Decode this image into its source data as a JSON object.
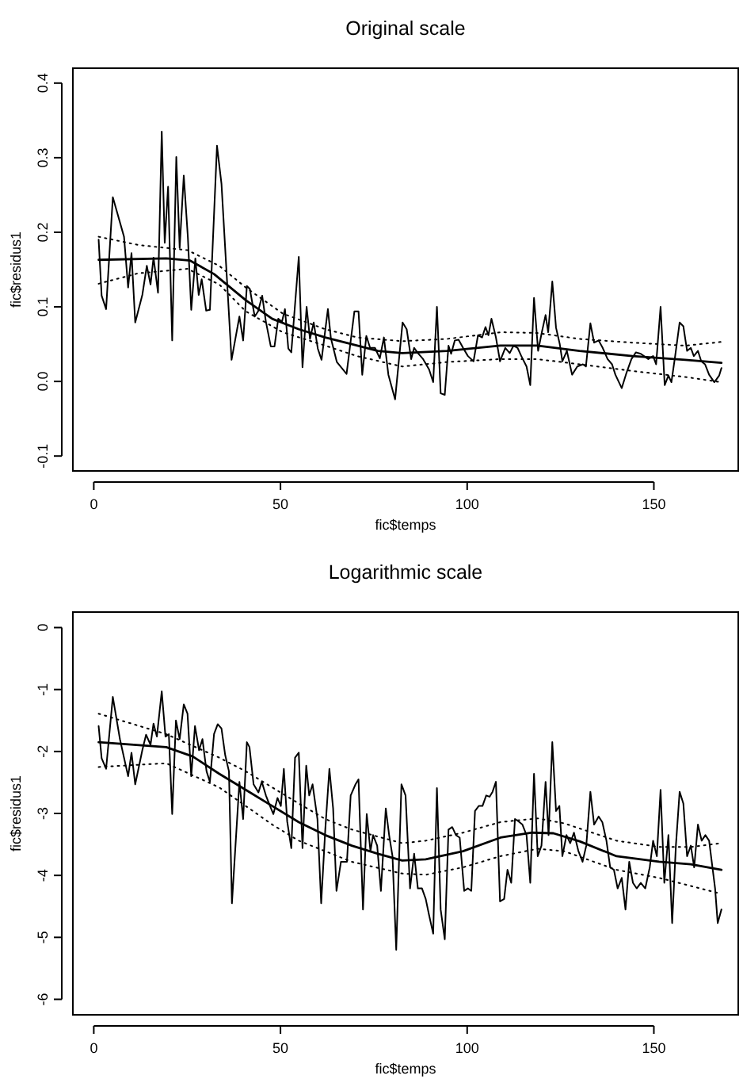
{
  "chart_data": [
    {
      "type": "line",
      "title": "Original scale",
      "xlabel": "fic$temps",
      "ylabel": "fic$residus1",
      "xlim": [
        -5.6,
        172.6
      ],
      "xticks": [
        0,
        50,
        100,
        150
      ],
      "ylim": [
        -0.12,
        0.42
      ],
      "yticks": [
        -0.1,
        {
          "value": 0,
          "label": "0.0"
        },
        0.1,
        0.2,
        0.3,
        0.4
      ],
      "grid": false,
      "marker": "none",
      "series": [
        {
          "color": "#000000",
          "line_style": "solid",
          "x": [
            1.3,
            2.1,
            3.3,
            5.1,
            8.1,
            9.2,
            10.1,
            11.1,
            13.0,
            14.2,
            15.2,
            16.0,
            17.2,
            18.2,
            19.0,
            19.9,
            21.0,
            22.1,
            23.0,
            24.1,
            25.2,
            26.1,
            27.2,
            28.1,
            28.9,
            30.1,
            31.1,
            33.0,
            34.2,
            36.9,
            39.0,
            40.0,
            41.0,
            41.8,
            43.1,
            44.0,
            45.1,
            46.1,
            47.4,
            48.4,
            49.4,
            50.4,
            51.2,
            52.1,
            52.9,
            54.9,
            55.9,
            57.0,
            57.9,
            58.9,
            60.0,
            61.0,
            62.7,
            63.5,
            65.1,
            67.7,
            69.8,
            70.9,
            71.9,
            73.0,
            74.0,
            75.3,
            76.6,
            77.7,
            78.9,
            80.7,
            82.7,
            83.8,
            85.0,
            85.8,
            86.8,
            88.2,
            89.8,
            90.9,
            91.9,
            92.9,
            94.0,
            95.0,
            95.7,
            96.7,
            97.7,
            98.9,
            100.2,
            101.7,
            102.9,
            104.0,
            104.9,
            105.7,
            106.5,
            107.7,
            108.8,
            110.2,
            111.4,
            112.4,
            113.5,
            114.5,
            115.9,
            116.9,
            117.9,
            119.0,
            120.0,
            121.0,
            121.7,
            122.8,
            123.8,
            124.8,
            125.5,
            126.7,
            128.1,
            129.5,
            131.0,
            131.8,
            133.0,
            134.0,
            135.2,
            136.3,
            137.6,
            138.8,
            139.7,
            141.4,
            142.7,
            144.0,
            145.2,
            146.5,
            148.5,
            149.8,
            150.6,
            151.8,
            152.9,
            153.9,
            154.7,
            155.7,
            156.9,
            157.9,
            158.9,
            159.9,
            160.7,
            161.8,
            162.7,
            163.7,
            164.8,
            166.2,
            167.5,
            168.1
          ],
          "values": [
            0.19,
            0.115,
            0.097,
            0.247,
            0.194,
            0.126,
            0.172,
            0.079,
            0.116,
            0.155,
            0.13,
            0.166,
            0.119,
            0.335,
            0.186,
            0.261,
            0.055,
            0.301,
            0.179,
            0.276,
            0.193,
            0.096,
            0.165,
            0.116,
            0.137,
            0.095,
            0.096,
            0.316,
            0.265,
            0.029,
            0.087,
            0.055,
            0.128,
            0.124,
            0.087,
            0.094,
            0.115,
            0.08,
            0.047,
            0.047,
            0.084,
            0.08,
            0.097,
            0.044,
            0.039,
            0.167,
            0.019,
            0.1,
            0.057,
            0.079,
            0.044,
            0.029,
            0.097,
            0.058,
            0.026,
            0.01,
            0.094,
            0.094,
            0.009,
            0.061,
            0.045,
            0.045,
            0.031,
            0.059,
            0.009,
            -0.024,
            0.079,
            0.07,
            0.03,
            0.045,
            0.038,
            0.03,
            0.016,
            -0.001,
            0.1,
            -0.016,
            -0.018,
            0.048,
            0.037,
            0.055,
            0.056,
            0.045,
            0.034,
            0.027,
            0.062,
            0.059,
            0.073,
            0.062,
            0.084,
            0.059,
            0.027,
            0.045,
            0.038,
            0.048,
            0.045,
            0.034,
            0.02,
            -0.005,
            0.112,
            0.041,
            0.066,
            0.089,
            0.066,
            0.134,
            0.072,
            0.05,
            0.027,
            0.041,
            0.009,
            0.02,
            0.023,
            0.02,
            0.078,
            0.052,
            0.055,
            0.045,
            0.03,
            0.023,
            0.009,
            -0.009,
            0.012,
            0.03,
            0.039,
            0.037,
            0.03,
            0.034,
            0.023,
            0.1,
            -0.005,
            0.008,
            -0.001,
            0.034,
            0.079,
            0.074,
            0.041,
            0.045,
            0.034,
            0.041,
            0.027,
            0.023,
            0.009,
            -0.001,
            0.008,
            0.018
          ]
        },
        {
          "color": "#000000",
          "line_style": "solid",
          "x": [
            1.3,
            19.4,
            25.8,
            32.2,
            40.7,
            47.8,
            54.9,
            62.0,
            69.1,
            76.1,
            82.6,
            94.6,
            108.9,
            118.7,
            130.1,
            144.3,
            158.4,
            168.1
          ],
          "values": [
            0.163,
            0.165,
            0.162,
            0.144,
            0.109,
            0.084,
            0.07,
            0.059,
            0.05,
            0.041,
            0.038,
            0.041,
            0.048,
            0.048,
            0.041,
            0.034,
            0.029,
            0.025
          ]
        },
        {
          "color": "#000000",
          "line_style": "dotted",
          "x": [
            1.3,
            11.9,
            25.1,
            33.6,
            40.7,
            50.6,
            62.0,
            70.5,
            82.6,
            94.6,
            108.9,
            118.7,
            130.1,
            144.3,
            158.4,
            168.1
          ],
          "values": [
            0.194,
            0.183,
            0.176,
            0.155,
            0.126,
            0.091,
            0.07,
            0.059,
            0.054,
            0.057,
            0.066,
            0.065,
            0.057,
            0.052,
            0.048,
            0.053
          ]
        },
        {
          "color": "#000000",
          "line_style": "dotted",
          "x": [
            1.3,
            11.9,
            25.1,
            33.6,
            40.7,
            50.6,
            62.0,
            70.5,
            82.6,
            94.6,
            108.9,
            118.7,
            130.1,
            144.3,
            158.4,
            168.1
          ],
          "values": [
            0.131,
            0.145,
            0.151,
            0.13,
            0.094,
            0.066,
            0.048,
            0.034,
            0.02,
            0.026,
            0.03,
            0.03,
            0.023,
            0.014,
            0.006,
            -0.001
          ]
        }
      ]
    },
    {
      "type": "line",
      "title": "Logarithmic scale",
      "xlabel": "fic$temps",
      "ylabel": "fic$residus1",
      "xlim": [
        -5.6,
        172.6
      ],
      "xticks": [
        0,
        50,
        100,
        150
      ],
      "ylim": [
        -6.25,
        0.25
      ],
      "yticks": [
        -6,
        -5,
        -4,
        -3,
        -2,
        -1,
        0
      ],
      "grid": false,
      "marker": "none",
      "series": [
        {
          "color": "#000000",
          "line_style": "solid",
          "x": [
            1.3,
            2.1,
            3.3,
            5.1,
            7.0,
            9.2,
            10.1,
            11.1,
            13.0,
            14.0,
            15.2,
            16.0,
            16.9,
            18.2,
            19.2,
            20.1,
            21.0,
            22.0,
            23.0,
            24.1,
            25.1,
            26.1,
            27.1,
            28.2,
            29.1,
            30.2,
            31.1,
            32.2,
            33.2,
            34.2,
            35.2,
            36.2,
            37.0,
            39.0,
            40.0,
            41.0,
            41.7,
            42.8,
            44.1,
            45.0,
            46.1,
            47.2,
            48.1,
            49.2,
            50.1,
            50.9,
            51.8,
            52.9,
            53.9,
            54.9,
            55.9,
            56.9,
            57.7,
            58.6,
            59.9,
            60.9,
            62.0,
            63.1,
            64.1,
            65.0,
            66.2,
            67.8,
            68.8,
            70.1,
            70.9,
            72.1,
            73.1,
            74.1,
            74.8,
            75.9,
            76.9,
            78.2,
            79.1,
            80.0,
            81.0,
            82.4,
            83.5,
            84.7,
            85.8,
            86.8,
            87.9,
            88.9,
            89.8,
            90.9,
            91.9,
            92.9,
            94.0,
            95.0,
            96.0,
            97.0,
            98.0,
            99.2,
            100.2,
            101.1,
            102.1,
            103.1,
            104.1,
            105.1,
            106.0,
            106.8,
            107.7,
            108.8,
            109.9,
            110.8,
            111.8,
            112.8,
            113.8,
            114.8,
            115.9,
            116.9,
            117.9,
            118.9,
            119.9,
            121.0,
            121.8,
            122.8,
            123.8,
            124.7,
            125.5,
            126.6,
            127.6,
            128.6,
            129.8,
            130.9,
            131.9,
            133.0,
            134.0,
            135.2,
            136.2,
            137.3,
            138.3,
            139.3,
            140.3,
            141.4,
            142.4,
            143.4,
            144.4,
            145.4,
            146.5,
            147.7,
            148.9,
            149.8,
            150.8,
            151.8,
            152.8,
            153.9,
            154.9,
            155.9,
            156.9,
            157.9,
            158.9,
            159.9,
            160.8,
            161.8,
            162.8,
            163.8,
            164.8,
            165.5,
            166.4,
            167.1,
            168.1
          ],
          "values": [
            -1.59,
            -2.11,
            -2.28,
            -1.12,
            -1.8,
            -2.4,
            -2.02,
            -2.53,
            -1.98,
            -1.73,
            -1.89,
            -1.55,
            -1.76,
            -1.03,
            -1.76,
            -1.72,
            -3.01,
            -1.5,
            -1.8,
            -1.24,
            -1.39,
            -2.4,
            -1.59,
            -1.98,
            -1.8,
            -2.32,
            -2.49,
            -1.72,
            -1.56,
            -1.63,
            -2.06,
            -2.32,
            -4.45,
            -2.49,
            -3.09,
            -1.85,
            -1.93,
            -2.53,
            -2.66,
            -2.49,
            -2.71,
            -2.88,
            -3.01,
            -2.75,
            -2.88,
            -2.28,
            -3.13,
            -3.56,
            -2.1,
            -2.02,
            -3.56,
            -2.23,
            -2.71,
            -2.53,
            -3.09,
            -4.45,
            -3.26,
            -2.28,
            -2.92,
            -4.25,
            -3.78,
            -3.78,
            -2.71,
            -2.53,
            -2.45,
            -4.55,
            -3.01,
            -3.61,
            -3.35,
            -3.52,
            -4.25,
            -2.92,
            -3.35,
            -3.69,
            -5.2,
            -2.53,
            -2.71,
            -4.21,
            -3.65,
            -4.21,
            -4.21,
            -4.38,
            -4.64,
            -4.94,
            -2.59,
            -4.55,
            -5.03,
            -3.26,
            -3.22,
            -3.35,
            -3.39,
            -4.25,
            -4.21,
            -4.25,
            -2.96,
            -2.88,
            -2.88,
            -2.71,
            -2.73,
            -2.65,
            -2.49,
            -4.42,
            -4.38,
            -3.91,
            -4.12,
            -3.09,
            -3.13,
            -3.18,
            -3.35,
            -4.12,
            -2.36,
            -3.69,
            -3.52,
            -2.49,
            -3.35,
            -1.85,
            -2.96,
            -2.88,
            -3.69,
            -3.35,
            -3.48,
            -3.31,
            -3.61,
            -3.78,
            -3.52,
            -2.65,
            -3.18,
            -3.05,
            -3.14,
            -3.44,
            -3.87,
            -3.91,
            -4.21,
            -4.04,
            -4.55,
            -3.78,
            -4.12,
            -4.21,
            -4.12,
            -4.21,
            -3.87,
            -3.44,
            -3.69,
            -2.62,
            -4.12,
            -3.35,
            -4.77,
            -3.52,
            -2.65,
            -2.84,
            -3.69,
            -3.52,
            -3.87,
            -3.18,
            -3.44,
            -3.35,
            -3.44,
            -3.78,
            -4.21,
            -4.77,
            -4.55
          ]
        },
        {
          "color": "#000000",
          "line_style": "solid",
          "x": [
            1.3,
            19.4,
            26.5,
            33.6,
            40.7,
            47.8,
            54.9,
            62.0,
            69.1,
            76.1,
            82.6,
            88.9,
            98.9,
            108.9,
            117.4,
            123.1,
            130.1,
            140.0,
            151.4,
            159.9,
            168.1
          ],
          "values": [
            -1.85,
            -1.93,
            -2.08,
            -2.36,
            -2.62,
            -2.88,
            -3.14,
            -3.35,
            -3.52,
            -3.65,
            -3.76,
            -3.74,
            -3.61,
            -3.39,
            -3.31,
            -3.32,
            -3.45,
            -3.69,
            -3.78,
            -3.82,
            -3.91
          ]
        },
        {
          "color": "#000000",
          "line_style": "dotted",
          "x": [
            1.3,
            19.4,
            33.6,
            40.7,
            47.8,
            54.9,
            62.0,
            69.1,
            82.6,
            88.9,
            98.9,
            108.9,
            118.9,
            126.0,
            140.0,
            151.4,
            159.9,
            168.1
          ],
          "values": [
            -1.39,
            -1.72,
            -2.1,
            -2.32,
            -2.58,
            -2.84,
            -3.09,
            -3.26,
            -3.48,
            -3.44,
            -3.31,
            -3.14,
            -3.08,
            -3.16,
            -3.44,
            -3.54,
            -3.54,
            -3.48
          ]
        },
        {
          "color": "#000000",
          "line_style": "dotted",
          "x": [
            1.3,
            19.4,
            33.6,
            40.7,
            47.8,
            54.9,
            62.0,
            69.1,
            82.6,
            88.9,
            98.9,
            108.9,
            118.9,
            126.0,
            140.0,
            151.4,
            159.9,
            168.1
          ],
          "values": [
            -2.25,
            -2.19,
            -2.58,
            -2.88,
            -3.18,
            -3.44,
            -3.61,
            -3.78,
            -3.97,
            -3.99,
            -3.87,
            -3.69,
            -3.57,
            -3.61,
            -3.91,
            -4.04,
            -4.17,
            -4.3
          ]
        }
      ]
    }
  ]
}
